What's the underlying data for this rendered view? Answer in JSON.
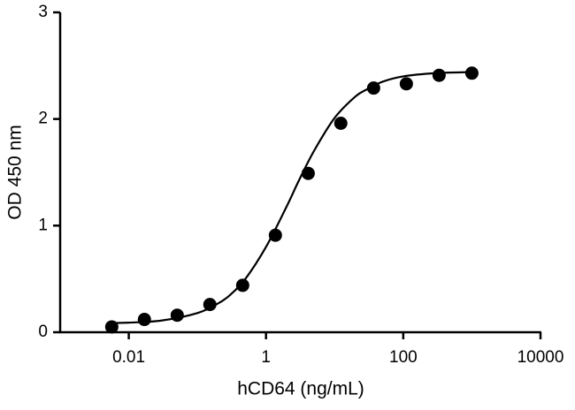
{
  "chart_data": {
    "type": "scatter",
    "x_label": "hCD64 (ng/mL)",
    "y_label": "OD 450 nm",
    "x_scale": "log",
    "x": [
      0.00565,
      0.0169,
      0.0508,
      0.152,
      0.457,
      1.37,
      4.12,
      12.3,
      37,
      111,
      333,
      1000
    ],
    "values": [
      0.05,
      0.12,
      0.16,
      0.26,
      0.44,
      0.91,
      1.49,
      1.96,
      2.29,
      2.33,
      2.41,
      2.43
    ],
    "color": "#000000",
    "fit": {
      "x": [
        0.005,
        0.01,
        0.03,
        0.1,
        0.2,
        0.3,
        0.5,
        1,
        2,
        3,
        5,
        10,
        20,
        30,
        50,
        100,
        300,
        1000
      ],
      "values": [
        0.085,
        0.09,
        0.11,
        0.18,
        0.27,
        0.35,
        0.5,
        0.8,
        1.18,
        1.42,
        1.7,
        2.01,
        2.21,
        2.28,
        2.35,
        2.4,
        2.43,
        2.44
      ],
      "color": "#000000"
    },
    "xlim": [
      0.001,
      10000
    ],
    "xticks": [
      0.01,
      1,
      100,
      10000
    ],
    "ylim": [
      0,
      3
    ],
    "yticks": [
      0,
      1,
      2,
      3
    ],
    "grid": false
  }
}
